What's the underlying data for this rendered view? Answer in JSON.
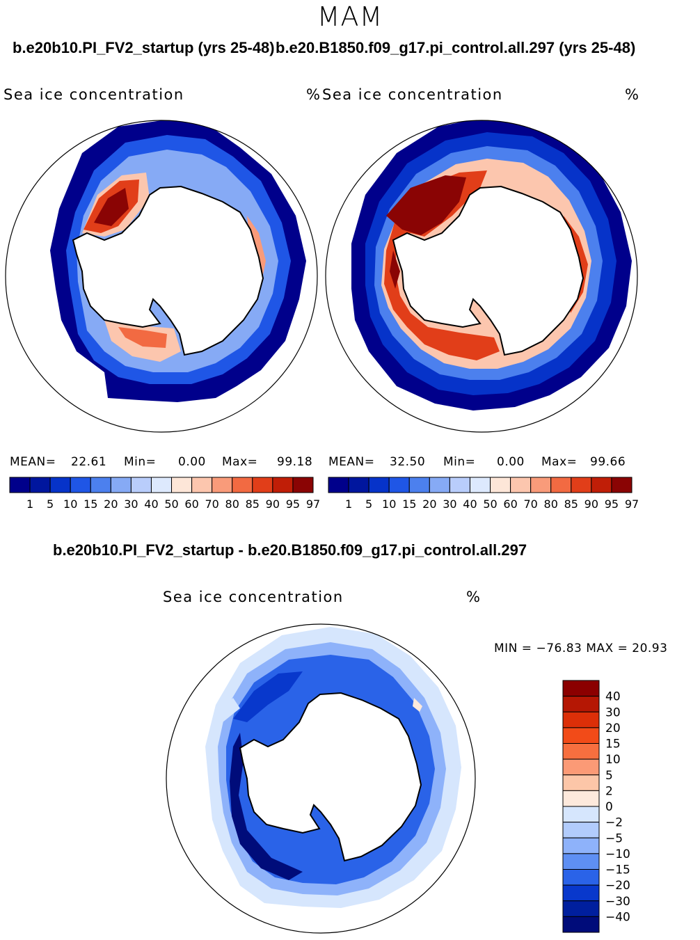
{
  "season": "MAM",
  "panels": [
    {
      "title": "b.e20b10.PI_FV2_startup (yrs 25-48)",
      "field": "Sea ice concentration",
      "units": "%",
      "mean_label": "MEAN=",
      "mean": "22.61",
      "min_label": "Min=",
      "min": "0.00",
      "max_label": "Max=",
      "max": "99.18"
    },
    {
      "title": "b.e20.B1850.f09_g17.pi_control.all.297 (yrs 25-48)",
      "field": "Sea ice concentration",
      "units": "%",
      "mean_label": "MEAN=",
      "mean": "32.50",
      "min_label": "Min=",
      "min": "0.00",
      "max_label": "Max=",
      "max": "99.66"
    }
  ],
  "abs_colorbar": {
    "levels": [
      "1",
      "5",
      "10",
      "15",
      "20",
      "30",
      "40",
      "50",
      "60",
      "70",
      "80",
      "85",
      "90",
      "95",
      "97"
    ],
    "colors": [
      "#00008b",
      "#00169e",
      "#0633c9",
      "#1f56e6",
      "#4c80ee",
      "#86aaf5",
      "#b9cdfb",
      "#dde9fd",
      "#fde6d8",
      "#fcc6ae",
      "#f99b7a",
      "#f26a42",
      "#e13e19",
      "#c01e07",
      "#8a0404"
    ]
  },
  "diff": {
    "title": "b.e20b10.PI_FV2_startup - b.e20.B1850.f09_g17.pi_control.all.297",
    "field": "Sea ice concentration",
    "units": "%",
    "minmax_text": "MIN = −76.83 MAX =  20.93",
    "colorbar": {
      "labels": [
        "40",
        "30",
        "20",
        "15",
        "10",
        "5",
        "2",
        "0",
        "−2",
        "−5",
        "−10",
        "−15",
        "−20",
        "−30",
        "−40"
      ],
      "colors": [
        "#8b0000",
        "#b51704",
        "#dc2f08",
        "#f24b18",
        "#f76f3f",
        "#fb9a76",
        "#fcc6a8",
        "#fde9dc",
        "#d6e6fd",
        "#b2ccfc",
        "#8eb2fa",
        "#5e8ff3",
        "#2a63e8",
        "#0838cc",
        "#001f9e",
        "#000c7a"
      ]
    }
  }
}
